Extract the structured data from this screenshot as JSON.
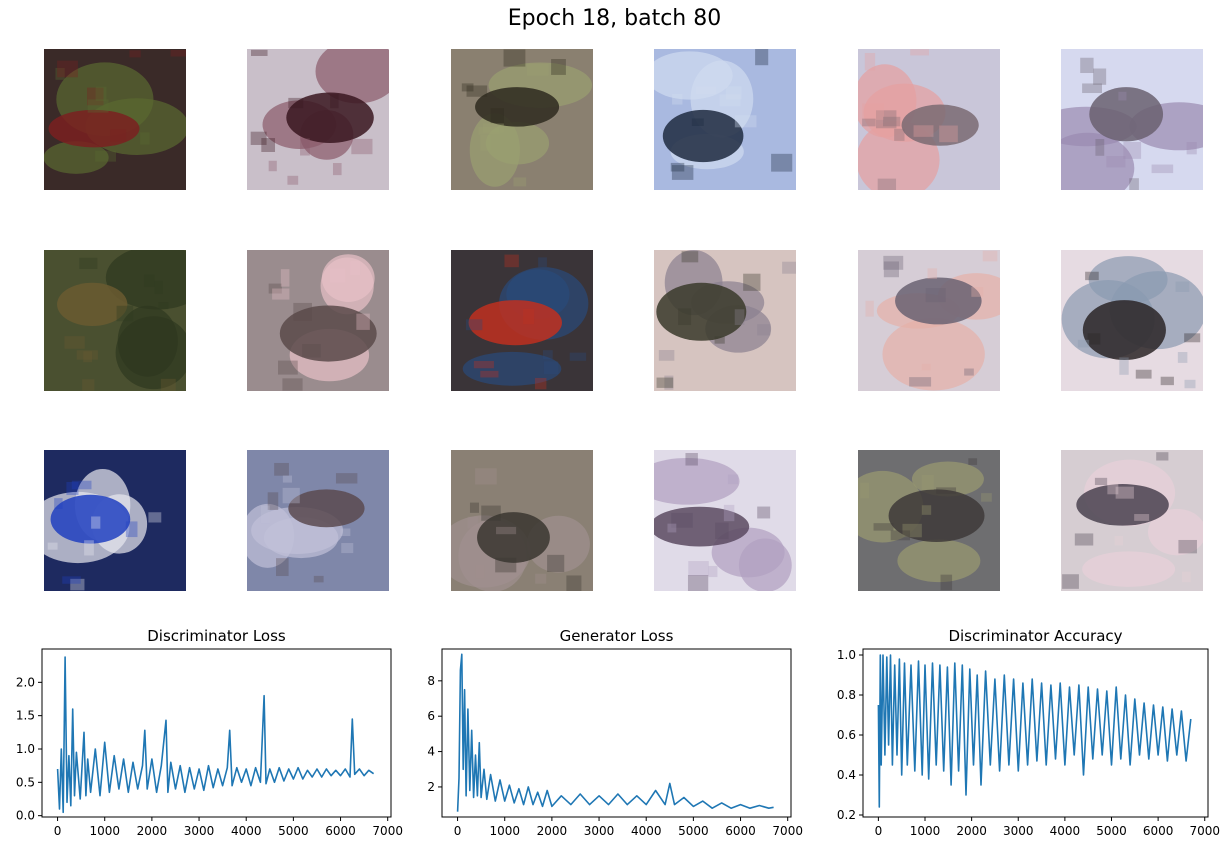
{
  "figure": {
    "title": "Epoch 18, batch 80",
    "samples": [
      {
        "bg": "#3a2a28",
        "blob": "#7a2020",
        "accent": "#5a6a30"
      },
      {
        "bg": "#c9bfc9",
        "blob": "#3a1620",
        "accent": "#8a5a6a"
      },
      {
        "bg": "#8a8070",
        "blob": "#2e2a1e",
        "accent": "#9aa070"
      },
      {
        "bg": "#a9b9e0",
        "blob": "#1e2a40",
        "accent": "#d0dcef"
      },
      {
        "bg": "#c9c6d9",
        "blob": "#7a6a72",
        "accent": "#e6a0a0"
      },
      {
        "bg": "#d6d9ef",
        "blob": "#6a6070",
        "accent": "#9a8ab0"
      },
      {
        "bg": "#4a5030",
        "blob": "#6a5a30",
        "accent": "#2e3820"
      },
      {
        "bg": "#9a8c8e",
        "blob": "#5a4a4a",
        "accent": "#e8c0c8"
      },
      {
        "bg": "#3a3438",
        "blob": "#c03020",
        "accent": "#2a4a7a"
      },
      {
        "bg": "#d6c4c0",
        "blob": "#3a3a2a",
        "accent": "#8a8090"
      },
      {
        "bg": "#d6cdd6",
        "blob": "#6a6272",
        "accent": "#e6b0a8"
      },
      {
        "bg": "#e6dbe2",
        "blob": "#2a2426",
        "accent": "#8a9ab0"
      },
      {
        "bg": "#1e2a60",
        "blob": "#2040c0",
        "accent": "#e8e8f0"
      },
      {
        "bg": "#7f87a9",
        "blob": "#5a4a50",
        "accent": "#c0c0d8"
      },
      {
        "bg": "#8a8074",
        "blob": "#3a3630",
        "accent": "#a09090"
      },
      {
        "bg": "#e0dbe8",
        "blob": "#5a4a60",
        "accent": "#b0a0c0"
      },
      {
        "bg": "#6e6e70",
        "blob": "#3e3a38",
        "accent": "#9a9a70"
      },
      {
        "bg": "#d6cdd2",
        "blob": "#4a4250",
        "accent": "#e8d0d8"
      }
    ]
  },
  "colors": {
    "line": "#1f77b4",
    "axis": "#000000"
  },
  "chart_data": [
    {
      "type": "line",
      "title": "Discriminator Loss",
      "xlim": [
        -330,
        7070
      ],
      "ylim": [
        -0.02,
        2.5
      ],
      "xticks": [
        0,
        1000,
        2000,
        3000,
        4000,
        5000,
        6000,
        7000
      ],
      "xtick_labels": [
        "0",
        "1000",
        "2000",
        "3000",
        "4000",
        "5000",
        "6000",
        "7000"
      ],
      "yticks": [
        0.0,
        0.5,
        1.0,
        1.5,
        2.0
      ],
      "ytick_labels": [
        "0.0",
        "0.5",
        "1.0",
        "1.5",
        "2.0"
      ],
      "series": [
        {
          "x": [
            0,
            40,
            80,
            120,
            160,
            200,
            240,
            280,
            320,
            360,
            400,
            480,
            560,
            600,
            640,
            700,
            800,
            900,
            1000,
            1100,
            1200,
            1300,
            1400,
            1500,
            1600,
            1700,
            1800,
            1850,
            1900,
            2000,
            2100,
            2200,
            2300,
            2340,
            2400,
            2500,
            2600,
            2700,
            2800,
            2900,
            3000,
            3100,
            3200,
            3300,
            3400,
            3500,
            3600,
            3650,
            3700,
            3800,
            3900,
            4000,
            4100,
            4200,
            4300,
            4380,
            4420,
            4500,
            4600,
            4700,
            4800,
            4900,
            5000,
            5100,
            5200,
            5300,
            5400,
            5500,
            5600,
            5700,
            5800,
            5900,
            6000,
            6100,
            6200,
            6250,
            6300,
            6400,
            6500,
            6600,
            6700
          ],
          "y": [
            0.7,
            0.1,
            1.0,
            0.05,
            2.38,
            0.2,
            0.9,
            0.15,
            1.6,
            0.3,
            0.95,
            0.25,
            1.25,
            0.3,
            0.85,
            0.35,
            1.0,
            0.3,
            1.1,
            0.35,
            0.9,
            0.4,
            0.85,
            0.35,
            0.8,
            0.4,
            0.75,
            1.28,
            0.4,
            0.85,
            0.35,
            0.75,
            1.43,
            0.35,
            0.8,
            0.4,
            0.75,
            0.35,
            0.72,
            0.4,
            0.7,
            0.38,
            0.75,
            0.42,
            0.7,
            0.45,
            0.72,
            1.28,
            0.45,
            0.72,
            0.5,
            0.7,
            0.45,
            0.72,
            0.5,
            1.8,
            0.48,
            0.7,
            0.5,
            0.72,
            0.52,
            0.7,
            0.55,
            0.72,
            0.55,
            0.68,
            0.58,
            0.7,
            0.58,
            0.7,
            0.6,
            0.68,
            0.6,
            0.7,
            0.58,
            1.45,
            0.62,
            0.7,
            0.6,
            0.68,
            0.63
          ]
        }
      ]
    },
    {
      "type": "line",
      "title": "Generator Loss",
      "xlim": [
        -330,
        7070
      ],
      "ylim": [
        0.3,
        9.8
      ],
      "xticks": [
        0,
        1000,
        2000,
        3000,
        4000,
        5000,
        6000,
        7000
      ],
      "xtick_labels": [
        "0",
        "1000",
        "2000",
        "3000",
        "4000",
        "5000",
        "6000",
        "7000"
      ],
      "yticks": [
        2,
        4,
        6,
        8
      ],
      "ytick_labels": [
        "2",
        "4",
        "6",
        "8"
      ],
      "series": [
        {
          "x": [
            0,
            30,
            60,
            90,
            120,
            150,
            180,
            220,
            260,
            300,
            340,
            380,
            420,
            460,
            500,
            560,
            620,
            700,
            800,
            900,
            1000,
            1100,
            1200,
            1300,
            1400,
            1500,
            1600,
            1700,
            1800,
            1900,
            2000,
            2200,
            2400,
            2600,
            2800,
            3000,
            3200,
            3400,
            3600,
            3800,
            4000,
            4200,
            4400,
            4500,
            4600,
            4800,
            5000,
            5200,
            5400,
            5600,
            5800,
            6000,
            6200,
            6400,
            6600,
            6700
          ],
          "y": [
            0.6,
            2.5,
            8.6,
            9.5,
            3.0,
            7.5,
            1.5,
            6.4,
            1.8,
            5.2,
            1.4,
            3.8,
            1.5,
            4.5,
            1.4,
            3.0,
            1.3,
            2.7,
            1.2,
            2.4,
            1.2,
            2.1,
            1.1,
            1.9,
            1.0,
            2.0,
            1.0,
            1.7,
            0.9,
            1.8,
            0.9,
            1.5,
            1.0,
            1.6,
            1.0,
            1.5,
            1.0,
            1.6,
            1.0,
            1.5,
            1.0,
            1.8,
            1.0,
            2.2,
            1.0,
            1.4,
            0.9,
            1.2,
            0.8,
            1.1,
            0.8,
            1.0,
            0.8,
            0.95,
            0.8,
            0.85
          ]
        }
      ]
    },
    {
      "type": "line",
      "title": "Discriminator Accuracy",
      "xlim": [
        -330,
        7070
      ],
      "ylim": [
        0.19,
        1.03
      ],
      "xticks": [
        0,
        1000,
        2000,
        3000,
        4000,
        5000,
        6000,
        7000
      ],
      "xtick_labels": [
        "0",
        "1000",
        "2000",
        "3000",
        "4000",
        "5000",
        "6000",
        "7000"
      ],
      "yticks": [
        0.2,
        0.4,
        0.6,
        0.8,
        1.0
      ],
      "ytick_labels": [
        "0.2",
        "0.4",
        "0.6",
        "0.8",
        "1.0"
      ],
      "series": [
        {
          "x": [
            0,
            20,
            40,
            60,
            100,
            140,
            180,
            220,
            260,
            300,
            350,
            400,
            450,
            500,
            560,
            620,
            700,
            780,
            860,
            940,
            1000,
            1080,
            1160,
            1240,
            1320,
            1400,
            1480,
            1560,
            1640,
            1720,
            1800,
            1880,
            1960,
            2040,
            2120,
            2200,
            2300,
            2400,
            2500,
            2600,
            2700,
            2800,
            2900,
            3000,
            3100,
            3200,
            3300,
            3400,
            3500,
            3600,
            3700,
            3800,
            3900,
            4000,
            4100,
            4200,
            4300,
            4400,
            4500,
            4600,
            4700,
            4800,
            4900,
            5000,
            5100,
            5200,
            5300,
            5400,
            5500,
            5600,
            5700,
            5800,
            5900,
            6000,
            6100,
            6200,
            6300,
            6400,
            6500,
            6600,
            6700
          ],
          "y": [
            0.75,
            0.24,
            1.0,
            0.45,
            1.0,
            0.5,
            0.99,
            0.55,
            1.0,
            0.45,
            0.95,
            0.5,
            0.98,
            0.4,
            0.96,
            0.45,
            0.95,
            0.42,
            0.97,
            0.4,
            0.95,
            0.38,
            0.96,
            0.45,
            0.95,
            0.42,
            0.94,
            0.35,
            0.96,
            0.42,
            0.95,
            0.3,
            0.93,
            0.45,
            0.9,
            0.35,
            0.92,
            0.45,
            0.88,
            0.42,
            0.9,
            0.45,
            0.88,
            0.42,
            0.86,
            0.45,
            0.88,
            0.47,
            0.86,
            0.45,
            0.85,
            0.48,
            0.86,
            0.45,
            0.84,
            0.5,
            0.85,
            0.4,
            0.84,
            0.48,
            0.83,
            0.5,
            0.82,
            0.45,
            0.84,
            0.48,
            0.8,
            0.45,
            0.78,
            0.5,
            0.76,
            0.48,
            0.75,
            0.5,
            0.74,
            0.47,
            0.73,
            0.5,
            0.72,
            0.47,
            0.68
          ]
        }
      ]
    }
  ]
}
